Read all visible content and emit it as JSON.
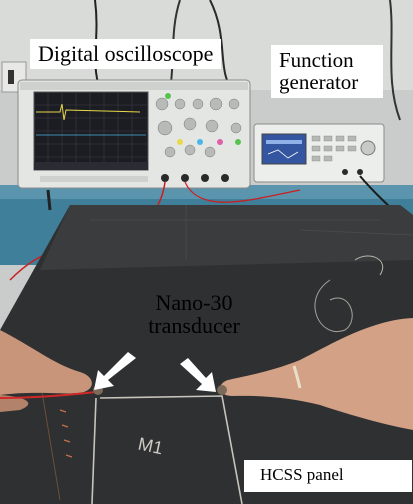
{
  "labels": {
    "oscilloscope": "Digital oscilloscope",
    "function_generator_line1": "Function",
    "function_generator_line2": "generator",
    "transducer_line1": "Nano-30",
    "transducer_line2": "transducer",
    "panel": "HCSS panel"
  },
  "panel_marking": "M1"
}
